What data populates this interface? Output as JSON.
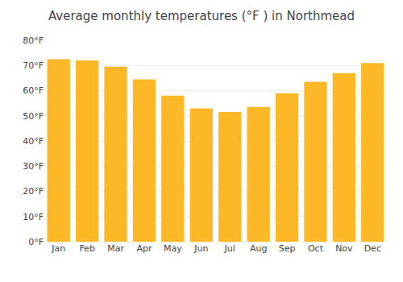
{
  "chart_data": {
    "type": "bar",
    "title": "Average monthly temperatures (°F ) in Northmead",
    "categories": [
      "Jan",
      "Feb",
      "Mar",
      "Apr",
      "May",
      "Jun",
      "Jul",
      "Aug",
      "Sep",
      "Oct",
      "Nov",
      "Dec"
    ],
    "values": [
      72.5,
      72.0,
      69.5,
      64.5,
      58.0,
      53.0,
      51.5,
      53.5,
      59.0,
      63.5,
      67.0,
      71.0
    ],
    "color": "#FDB827",
    "ylim": [
      0,
      80
    ],
    "yticks": [
      {
        "value": 0,
        "label": "0°F"
      },
      {
        "value": 10,
        "label": "10°F"
      },
      {
        "value": 20,
        "label": "20°F"
      },
      {
        "value": 30,
        "label": "30°F"
      },
      {
        "value": 40,
        "label": "40°F"
      },
      {
        "value": 50,
        "label": "50°F"
      },
      {
        "value": 60,
        "label": "60°F"
      },
      {
        "value": 70,
        "label": "70°F"
      },
      {
        "value": 80,
        "label": "80°F"
      }
    ],
    "grid": true
  }
}
